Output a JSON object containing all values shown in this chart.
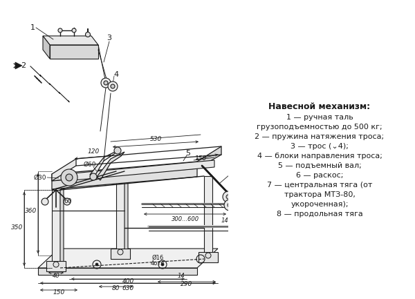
{
  "bg_color": "#ffffff",
  "line_color": "#1a1a1a",
  "title": "Навесной механизм:",
  "legend_lines": [
    {
      "text": "1 — ручная таль",
      "indent": true
    },
    {
      "text": "грузоподъемностью до 500 кг;",
      "indent": true
    },
    {
      "text": "2 — пружина натяжения троса;",
      "indent": false
    },
    {
      "text": "3 — трос (⌄4);",
      "indent": true
    },
    {
      "text": "4 — блоки направления троса;",
      "indent": false
    },
    {
      "text": "5 — подъемный вал;",
      "indent": true
    },
    {
      "text": "6 — раскос;",
      "indent": true
    },
    {
      "text": "7 — центральная тяга (от",
      "indent": false
    },
    {
      "text": "трактора МТЗ-80,",
      "indent": true
    },
    {
      "text": "укороченная);",
      "indent": true
    },
    {
      "text": "8 — продольная тяга",
      "indent": false
    }
  ],
  "fig_width": 6.0,
  "fig_height": 4.33,
  "dpi": 100
}
